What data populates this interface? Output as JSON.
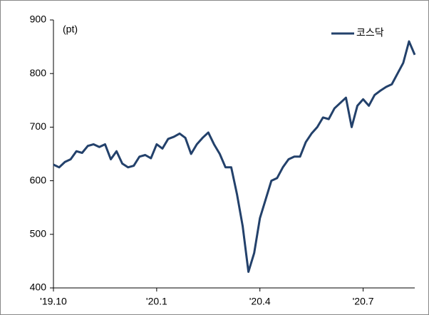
{
  "chart_data": {
    "type": "line",
    "y_unit_label": "(pt)",
    "categories": [
      "'19.10",
      null,
      null,
      null,
      null,
      null,
      null,
      null,
      null,
      null,
      null,
      null,
      null,
      null,
      null,
      null,
      null,
      null,
      "'20.1",
      null,
      null,
      null,
      null,
      null,
      null,
      null,
      null,
      null,
      null,
      null,
      null,
      null,
      null,
      null,
      null,
      null,
      "'20.4",
      null,
      null,
      null,
      null,
      null,
      null,
      null,
      null,
      null,
      null,
      null,
      null,
      null,
      null,
      null,
      null,
      null,
      "'20.7",
      null,
      null,
      null,
      null,
      null,
      null,
      null,
      null,
      null
    ],
    "series": [
      {
        "name": "코스닥",
        "color": "#23416b",
        "values": [
          630,
          625,
          635,
          640,
          655,
          652,
          665,
          668,
          663,
          668,
          640,
          655,
          632,
          625,
          628,
          645,
          648,
          642,
          668,
          660,
          678,
          682,
          688,
          680,
          650,
          668,
          680,
          690,
          668,
          650,
          625,
          625,
          575,
          515,
          430,
          465,
          530,
          565,
          600,
          605,
          625,
          640,
          645,
          645,
          672,
          688,
          700,
          718,
          715,
          735,
          745,
          755,
          700,
          740,
          752,
          740,
          760,
          768,
          775,
          780,
          800,
          820,
          860,
          835
        ]
      }
    ],
    "ylim": [
      400,
      900
    ],
    "yticks": [
      400,
      500,
      600,
      700,
      800,
      900
    ],
    "legend": "upper right"
  }
}
